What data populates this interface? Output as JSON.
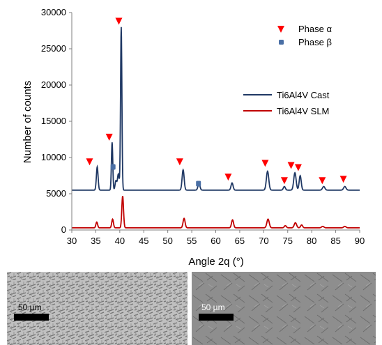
{
  "chart_data": {
    "type": "line",
    "xlabel": "Angle 2q (°)",
    "ylabel": "Number of counts",
    "xlim": [
      30,
      90
    ],
    "ylim": [
      0,
      30000
    ],
    "x_ticks": [
      30,
      35,
      40,
      45,
      50,
      55,
      60,
      65,
      70,
      75,
      80,
      85,
      90
    ],
    "y_ticks": [
      0,
      5000,
      10000,
      15000,
      20000,
      25000,
      30000
    ],
    "grid": false,
    "legend_position": "right",
    "series": [
      {
        "name": "Ti6Al4V Cast",
        "color": "#1f3864",
        "baseline": 5500,
        "peaks": [
          {
            "x": 35.3,
            "y": 8700,
            "w": 0.25
          },
          {
            "x": 38.4,
            "y": 12100,
            "w": 0.2
          },
          {
            "x": 39.2,
            "y": 6800,
            "w": 0.25
          },
          {
            "x": 39.7,
            "y": 7700,
            "w": 0.25
          },
          {
            "x": 40.3,
            "y": 28000,
            "w": 0.2
          },
          {
            "x": 53.2,
            "y": 8300,
            "w": 0.3
          },
          {
            "x": 56.5,
            "y": 6400,
            "w": 0.3
          },
          {
            "x": 63.4,
            "y": 6500,
            "w": 0.3
          },
          {
            "x": 70.8,
            "y": 8100,
            "w": 0.35
          },
          {
            "x": 74.3,
            "y": 6000,
            "w": 0.3
          },
          {
            "x": 76.5,
            "y": 7900,
            "w": 0.35
          },
          {
            "x": 77.6,
            "y": 7500,
            "w": 0.3
          },
          {
            "x": 82.5,
            "y": 6000,
            "w": 0.35
          },
          {
            "x": 86.9,
            "y": 6000,
            "w": 0.35
          }
        ]
      },
      {
        "name": "Ti6Al4V SLM",
        "color": "#c00000",
        "baseline": 300,
        "peaks": [
          {
            "x": 35.2,
            "y": 1100,
            "w": 0.25
          },
          {
            "x": 38.5,
            "y": 1500,
            "w": 0.25
          },
          {
            "x": 40.6,
            "y": 4700,
            "w": 0.25
          },
          {
            "x": 53.4,
            "y": 1600,
            "w": 0.3
          },
          {
            "x": 63.5,
            "y": 1400,
            "w": 0.3
          },
          {
            "x": 70.9,
            "y": 1500,
            "w": 0.35
          },
          {
            "x": 74.5,
            "y": 600,
            "w": 0.3
          },
          {
            "x": 76.6,
            "y": 1000,
            "w": 0.35
          },
          {
            "x": 77.9,
            "y": 700,
            "w": 0.3
          },
          {
            "x": 82.3,
            "y": 500,
            "w": 0.35
          },
          {
            "x": 86.9,
            "y": 500,
            "w": 0.35
          }
        ]
      }
    ],
    "markers_alpha": [
      {
        "x": 33.7,
        "y": 9400
      },
      {
        "x": 37.8,
        "y": 12800
      },
      {
        "x": 39.8,
        "y": 28800
      },
      {
        "x": 52.5,
        "y": 9400
      },
      {
        "x": 62.6,
        "y": 7300
      },
      {
        "x": 70.3,
        "y": 9200
      },
      {
        "x": 74.3,
        "y": 6800
      },
      {
        "x": 75.7,
        "y": 8900
      },
      {
        "x": 77.2,
        "y": 8600
      },
      {
        "x": 82.2,
        "y": 6800
      },
      {
        "x": 86.6,
        "y": 7000
      }
    ],
    "markers_beta": [
      {
        "x": 38.6,
        "y": 8700
      },
      {
        "x": 56.4,
        "y": 6400
      }
    ],
    "legend_symbols": [
      {
        "label": "Phase α",
        "marker": "red-triangle-down",
        "color": "#ff0000"
      },
      {
        "label": "Phase β",
        "marker": "blue-square",
        "color": "#4a6fa5"
      }
    ]
  },
  "micrographs": [
    {
      "scale_label": "50 µm"
    },
    {
      "scale_label": "50 µm"
    }
  ]
}
